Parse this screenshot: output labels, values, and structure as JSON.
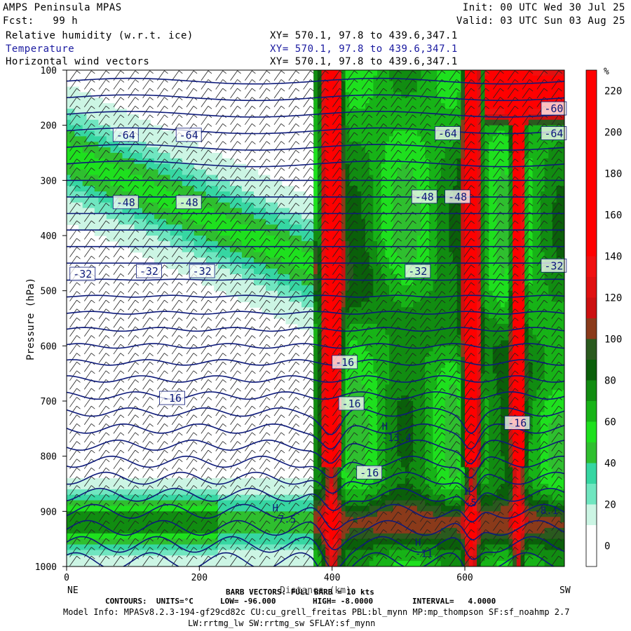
{
  "header": {
    "model": "AMPS Peninsula MPAS",
    "init": "Init: 00 UTC Wed 30 Jul 25",
    "fcst": "Fcst:   99 h",
    "valid": "Valid: 03 UTC Sun 03 Aug 25",
    "fields": [
      {
        "name": "Relative humidity (w.r.t. ice)",
        "xy": "XY= 570.1, 97.8 to 439.6,347.1"
      },
      {
        "name": "Temperature",
        "xy": "XY= 570.1, 97.8 to 439.6,347.1"
      },
      {
        "name": "Horizontal wind vectors",
        "xy": "XY= 570.1, 97.8 to 439.6,347.1"
      }
    ]
  },
  "chart_data": {
    "type": "heatmap",
    "ylabel": "Pressure (hPa)",
    "xlabel": "Distance (km)",
    "y_ticks": [
      100,
      200,
      300,
      400,
      500,
      600,
      700,
      800,
      900,
      1000
    ],
    "x_ticks": [
      0,
      200,
      400,
      600
    ],
    "xlim": [
      0,
      750
    ],
    "ylim": [
      1000,
      100
    ],
    "left_end_label": "NE",
    "right_end_label": "SW",
    "colorbar": {
      "unit": "%",
      "labels": [
        0,
        20,
        40,
        60,
        80,
        100,
        120,
        140,
        160,
        180,
        200,
        220
      ],
      "colors": [
        "#ffffff",
        "#ffffff",
        "#ccf5e4",
        "#70e6c0",
        "#36d6a2",
        "#2fbf2f",
        "#1ee01e",
        "#17b317",
        "#118c11",
        "#0a5f0a",
        "#2a5a1e",
        "#8a3a1a",
        "#cc1010",
        "#e01010",
        "#f01010",
        "#ff0000",
        "#ff0000",
        "#ff0000",
        "#ff0000",
        "#ff0000",
        "#ff0000",
        "#ff0000",
        "#ff0000",
        "#ff0000"
      ]
    },
    "temperature_labels": [
      {
        "text": "-64",
        "x": 70,
        "p": 218
      },
      {
        "text": "-64",
        "x": 165,
        "p": 218
      },
      {
        "text": "-64",
        "x": 555,
        "p": 215
      },
      {
        "text": "-64",
        "x": 715,
        "p": 215
      },
      {
        "text": "-60",
        "x": 715,
        "p": 170
      },
      {
        "text": "-48",
        "x": 70,
        "p": 340
      },
      {
        "text": "-48",
        "x": 165,
        "p": 340
      },
      {
        "text": "-48",
        "x": 520,
        "p": 330
      },
      {
        "text": "-48",
        "x": 570,
        "p": 330
      },
      {
        "text": "-32",
        "x": 5,
        "p": 470
      },
      {
        "text": "-32",
        "x": 105,
        "p": 465
      },
      {
        "text": "-32",
        "x": 185,
        "p": 465
      },
      {
        "text": "-32",
        "x": 510,
        "p": 465
      },
      {
        "text": "-32",
        "x": 715,
        "p": 455
      },
      {
        "text": "-16",
        "x": 400,
        "p": 630
      },
      {
        "text": "-16",
        "x": 410,
        "p": 705
      },
      {
        "text": "-16",
        "x": 140,
        "p": 695
      },
      {
        "text": "-16",
        "x": 437,
        "p": 830
      },
      {
        "text": "-16",
        "x": 660,
        "p": 740
      }
    ],
    "extrema": [
      {
        "mark": "H",
        "value": "-7.5",
        "x": 310,
        "p": 918
      },
      {
        "mark": "H",
        "value": "-13.4",
        "x": 475,
        "p": 770
      },
      {
        "mark": "H",
        "value": "-5",
        "x": 600,
        "p": 888
      },
      {
        "mark": "H",
        "value": "-11",
        "x": 525,
        "p": 980
      },
      {
        "mark": "",
        "value": "-8.1",
        "x": 705,
        "p": 902
      }
    ],
    "wind_barb_note": "BARB VECTORS: FULL BARB = 10 kts",
    "contour_info": {
      "units": "CONTOURS:  UNITS=°C",
      "low": "LOW= -96.000",
      "high": "HIGH= -8.0000",
      "interval": "INTERVAL=   4.0000"
    }
  },
  "footer": {
    "model_info": "Model Info: MPASv8.2.3-194-gf29cd82c CU:cu_grell_freitas PBL:bl_mynn MP:mp_thompson SF:sf_noahmp 2.7",
    "model_info2": "LW:rrtmg_lw SW:rrtmg_sw SFLAY:sf_mynn"
  }
}
